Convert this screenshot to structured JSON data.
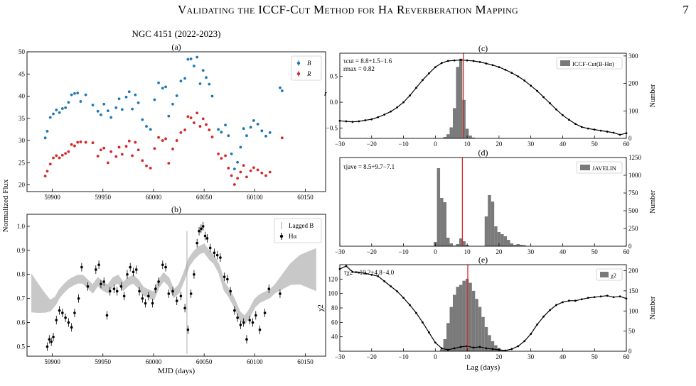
{
  "header": {
    "running_title": "Validating the ICCF-Cut Method for Hα Reverberation Mapping",
    "page_number": "7"
  },
  "figure": {
    "suptitle": "NGC 4151 (2022-2023)",
    "panels": {
      "a": {
        "label": "(a)",
        "ylabel": "Normalized Flux",
        "legend": [
          "B",
          "R"
        ],
        "colors": {
          "B": "#1f77b4",
          "R": "#d62728"
        },
        "xticks": [
          "59900",
          "59950",
          "60000",
          "60050",
          "60100",
          "60150"
        ],
        "yticks": [
          "20",
          "25",
          "30",
          "35",
          "40",
          "45",
          "50"
        ]
      },
      "b": {
        "label": "(b)",
        "xlabel": "MJD (days)",
        "legend": [
          "Lagged B",
          "Hα"
        ],
        "xticks": [
          "59900",
          "59950",
          "60000",
          "60050",
          "60100",
          "60150"
        ],
        "yticks": [
          "0.5",
          "0.6",
          "0.7",
          "0.8",
          "0.9",
          "1.0"
        ]
      },
      "c": {
        "label": "(c)",
        "ylabel": "r",
        "ylabel_right": "Number",
        "annotation_1": "τcut = 8.8+1.5−1.6",
        "annotation_2": "rmax = 0.82",
        "legend": "ICCF-Cut(B-Hα)",
        "xticks": [
          "−30",
          "−20",
          "−10",
          "0",
          "10",
          "20",
          "30",
          "40",
          "50",
          "60"
        ],
        "yticks": [
          "−0.5",
          "0.0",
          "0.5"
        ],
        "yticks_right": [
          "0",
          "100",
          "200",
          "300"
        ],
        "lag_line": 8.8
      },
      "d": {
        "label": "(d)",
        "ylabel_right": "Number",
        "annotation": "τjave = 8.5+9.7−7.1",
        "legend": "JAVELIN",
        "xticks": [
          "−30",
          "−20",
          "−10",
          "0",
          "10",
          "20",
          "30",
          "40",
          "50",
          "60"
        ],
        "yticks_right": [
          "0",
          "250",
          "500",
          "750",
          "1000",
          "1250"
        ],
        "lag_line": 8.5
      },
      "e": {
        "label": "(e)",
        "ylabel": "χ2",
        "ylabel_right": "Number",
        "xlabel": "Lag (days)",
        "annotation": "τχ2 = 10.2+4.8−4.0",
        "legend": "χ2",
        "xticks": [
          "−30",
          "−20",
          "−10",
          "0",
          "10",
          "20",
          "30",
          "40",
          "50",
          "60"
        ],
        "yticks": [
          "40",
          "60",
          "80",
          "100",
          "120"
        ],
        "yticks_right": [
          "0",
          "50",
          "100",
          "150",
          "200"
        ],
        "lag_line": 10.2
      }
    }
  },
  "chart_data": [
    {
      "type": "scatter",
      "panel": "a",
      "title": "(a)",
      "ylabel": "Normalized Flux",
      "xlim": [
        59875,
        60170
      ],
      "ylim": [
        18.5,
        50
      ],
      "series": [
        {
          "name": "B",
          "x": [
            59893,
            59895,
            59898,
            59901,
            59904,
            59907,
            59910,
            59913,
            59916,
            59919,
            59922,
            59925,
            59928,
            59933,
            59940,
            59945,
            59948,
            59951,
            59955,
            59958,
            59963,
            59966,
            59969,
            59973,
            59976,
            59979,
            59982,
            59985,
            59989,
            59993,
            59997,
            60001,
            60005,
            60009,
            60012,
            60015,
            60019,
            60023,
            60027,
            60031,
            60034,
            60037,
            60040,
            60043,
            60046,
            60049,
            60052,
            60055,
            60058,
            60064,
            60067,
            60071,
            60074,
            60077,
            60080,
            60083,
            60086,
            60089,
            60092,
            60096,
            60099,
            60103,
            60107,
            60111,
            60115,
            60125,
            60127
          ],
          "y": [
            30.6,
            32.1,
            35.2,
            36.0,
            36.9,
            36.3,
            37.2,
            37.4,
            38.6,
            40.3,
            40.6,
            40.7,
            38.8,
            40.3,
            38.0,
            36.6,
            35.8,
            38.2,
            36.7,
            35.2,
            37.4,
            39.4,
            37.0,
            39.8,
            41.0,
            37.1,
            40.3,
            38.5,
            34.7,
            33.2,
            32.5,
            39.2,
            43.0,
            41.8,
            42.1,
            35.5,
            38.2,
            40.1,
            43.4,
            44.0,
            48.3,
            48.4,
            46.8,
            48.8,
            42.8,
            45.8,
            44.2,
            42.7,
            40.0,
            32.5,
            31.9,
            33.5,
            31.1,
            27.0,
            23.6,
            25.1,
            28.5,
            32.7,
            31.1,
            33.0,
            34.5,
            33.7,
            32.2,
            31.0,
            31.8,
            41.9,
            41.2
          ]
        },
        {
          "name": "R",
          "x": [
            59893,
            59895,
            59898,
            59901,
            59904,
            59907,
            59910,
            59913,
            59916,
            59919,
            59922,
            59925,
            59928,
            59933,
            59940,
            59945,
            59948,
            59951,
            59955,
            59958,
            59963,
            59966,
            59969,
            59973,
            59976,
            59979,
            59982,
            59985,
            59989,
            59993,
            59997,
            60001,
            60005,
            60009,
            60012,
            60015,
            60019,
            60023,
            60027,
            60031,
            60034,
            60037,
            60040,
            60043,
            60046,
            60049,
            60052,
            60055,
            60058,
            60064,
            60067,
            60071,
            60074,
            60077,
            60080,
            60083,
            60086,
            60089,
            60092,
            60096,
            60099,
            60103,
            60107,
            60111,
            60115,
            60127
          ],
          "y": [
            22.0,
            23.1,
            24.7,
            26.1,
            26.6,
            26.1,
            26.7,
            27.1,
            27.5,
            29.1,
            28.8,
            29.6,
            29.7,
            29.6,
            29.5,
            26.5,
            27.9,
            28.3,
            25.0,
            27.5,
            26.4,
            28.5,
            26.9,
            28.7,
            29.9,
            26.6,
            29.6,
            27.9,
            25.5,
            24.3,
            23.8,
            28.2,
            30.7,
            30.0,
            30.4,
            24.9,
            28.1,
            30.0,
            31.8,
            32.4,
            35.4,
            35.1,
            34.0,
            36.2,
            33.2,
            34.9,
            33.6,
            32.4,
            30.8,
            27.0,
            26.0,
            26.6,
            23.8,
            22.1,
            20.1,
            21.5,
            22.9,
            24.4,
            21.8,
            23.2,
            23.9,
            23.4,
            22.7,
            22.1,
            22.9,
            30.6
          ]
        }
      ]
    },
    {
      "type": "line",
      "panel": "b",
      "title": "(b)",
      "xlabel": "MJD (days)",
      "xlim": [
        59875,
        60170
      ],
      "ylim": [
        0.46,
        1.05
      ],
      "series": [
        {
          "name": "Lagged B",
          "x": [
            59880,
            59886,
            59893,
            59898,
            59903,
            59907,
            59911,
            59916,
            59920,
            59925,
            59930,
            59935,
            59940,
            59945,
            59950,
            59955,
            59960,
            59965,
            59970,
            59975,
            59980,
            59985,
            59990,
            59995,
            60000,
            60005,
            60010,
            60015,
            60020,
            60025,
            60030,
            60035,
            60040,
            60045,
            60050,
            60055,
            60060,
            60065,
            60070,
            60075,
            60080,
            60085,
            60090,
            60095,
            60100,
            60105,
            60110,
            60115,
            60120,
            60125,
            60130,
            60135,
            60140,
            60145,
            60150,
            60155,
            60160
          ],
          "y": [
            0.72,
            0.7,
            0.68,
            0.67,
            0.69,
            0.72,
            0.74,
            0.76,
            0.77,
            0.78,
            0.78,
            0.76,
            0.74,
            0.77,
            0.75,
            0.74,
            0.77,
            0.78,
            0.75,
            0.77,
            0.78,
            0.76,
            0.73,
            0.72,
            0.71,
            0.76,
            0.79,
            0.77,
            0.72,
            0.74,
            0.79,
            0.85,
            0.88,
            0.9,
            0.91,
            0.88,
            0.86,
            0.82,
            0.75,
            0.72,
            0.68,
            0.63,
            0.61,
            0.64,
            0.68,
            0.7,
            0.71,
            0.72,
            0.74,
            0.76,
            0.78,
            0.8,
            0.81,
            0.82,
            0.82,
            0.82,
            0.82
          ]
        },
        {
          "name": "Hα",
          "x": [
            59895,
            59897,
            59899,
            59901,
            59904,
            59907,
            59910,
            59913,
            59916,
            59919,
            59922,
            59926,
            59929,
            59935,
            59943,
            59946,
            59948,
            59951,
            59954,
            59957,
            59961,
            59964,
            59968,
            59971,
            59974,
            59977,
            59980,
            59983,
            59986,
            59989,
            59992,
            59995,
            59999,
            60002,
            60005,
            60009,
            60012,
            60015,
            60019,
            60023,
            60027,
            60031,
            60034,
            60037,
            60040,
            60043,
            60045,
            60047,
            60049,
            60051,
            60053,
            60056,
            60060,
            60063,
            60066,
            60070,
            60073,
            60076,
            60080,
            60083,
            60086,
            60089,
            60092,
            60095,
            60098,
            60101,
            60105,
            60110,
            60114,
            60125
          ],
          "y": [
            0.5,
            0.53,
            0.52,
            0.54,
            0.61,
            0.65,
            0.64,
            0.62,
            0.6,
            0.58,
            0.64,
            0.7,
            0.83,
            0.75,
            0.82,
            0.84,
            0.76,
            0.77,
            0.63,
            0.73,
            0.74,
            0.73,
            0.75,
            0.71,
            0.8,
            0.83,
            0.81,
            0.82,
            0.73,
            0.7,
            0.68,
            0.71,
            0.68,
            0.74,
            0.77,
            0.84,
            0.83,
            0.72,
            0.73,
            0.69,
            0.71,
            0.66,
            0.57,
            0.72,
            0.8,
            0.93,
            0.98,
            0.99,
            1.0,
            0.96,
            0.95,
            0.91,
            0.89,
            0.88,
            0.87,
            0.79,
            0.78,
            0.73,
            0.65,
            0.62,
            0.59,
            0.6,
            0.53,
            0.61,
            0.6,
            0.63,
            0.57,
            0.64,
            0.74,
            0.72
          ]
        }
      ]
    },
    {
      "type": "line",
      "panel": "c",
      "title": "(c)",
      "xlim": [
        -30,
        60
      ],
      "ylim": [
        -0.7,
        0.95
      ],
      "series": [
        {
          "name": "r",
          "x": [
            -30,
            -28,
            -26,
            -24,
            -22,
            -20,
            -18,
            -16,
            -14,
            -12,
            -10,
            -8,
            -6,
            -4,
            -2,
            0,
            2,
            4,
            6,
            8,
            10,
            12,
            14,
            16,
            18,
            20,
            22,
            24,
            26,
            28,
            30,
            32,
            34,
            36,
            38,
            40,
            42,
            44,
            46,
            48,
            50,
            52,
            54,
            56,
            58,
            60
          ],
          "y": [
            -0.36,
            -0.37,
            -0.38,
            -0.37,
            -0.35,
            -0.33,
            -0.29,
            -0.24,
            -0.18,
            -0.1,
            0.0,
            0.13,
            0.28,
            0.43,
            0.56,
            0.68,
            0.76,
            0.8,
            0.81,
            0.82,
            0.81,
            0.8,
            0.78,
            0.75,
            0.72,
            0.68,
            0.63,
            0.57,
            0.5,
            0.42,
            0.32,
            0.22,
            0.1,
            -0.02,
            -0.14,
            -0.25,
            -0.34,
            -0.42,
            -0.48,
            -0.51,
            -0.53,
            -0.55,
            -0.57,
            -0.59,
            -0.63,
            -0.6
          ]
        }
      ],
      "histogram": {
        "name": "ICCF-Cut(B-Hα)",
        "bins": [
          3,
          4,
          5,
          6,
          7,
          8,
          9,
          10,
          11,
          12
        ],
        "counts": [
          5,
          15,
          40,
          110,
          260,
          290,
          140,
          35,
          10,
          3
        ]
      }
    },
    {
      "type": "bar",
      "panel": "d",
      "title": "(d)",
      "xlim": [
        -30,
        60
      ],
      "ylim": [
        0,
        1250
      ],
      "histogram": {
        "name": "JAVELIN",
        "bins": [
          0,
          1,
          2,
          3,
          4,
          5,
          6,
          7,
          8,
          9,
          10,
          16,
          17,
          18,
          19,
          20,
          21,
          22,
          23,
          24,
          25,
          26,
          27,
          28
        ],
        "counts": [
          60,
          1100,
          680,
          620,
          120,
          40,
          10,
          30,
          110,
          70,
          20,
          420,
          720,
          630,
          280,
          200,
          170,
          140,
          90,
          40,
          20,
          30,
          20,
          15
        ]
      }
    },
    {
      "type": "line",
      "panel": "e",
      "title": "(e)",
      "xlabel": "Lag (days)",
      "xlim": [
        -30,
        60
      ],
      "ylim": [
        20,
        140
      ],
      "series": [
        {
          "name": "χ2",
          "x": [
            -30,
            -28,
            -26,
            -24,
            -22,
            -20,
            -18,
            -16,
            -14,
            -12,
            -10,
            -8,
            -6,
            -4,
            -2,
            0,
            2,
            4,
            6,
            8,
            10,
            12,
            14,
            16,
            18,
            20,
            22,
            24,
            26,
            28,
            30,
            32,
            34,
            36,
            38,
            40,
            42,
            44,
            46,
            48,
            50,
            52,
            54,
            56,
            58,
            60
          ],
          "y": [
            134,
            138,
            130,
            129,
            128,
            126,
            124,
            117,
            110,
            103,
            94,
            84,
            73,
            60,
            46,
            32,
            24,
            22,
            24,
            26,
            27,
            25,
            26,
            24,
            23,
            22,
            21,
            23,
            27,
            34,
            44,
            57,
            68,
            77,
            84,
            88,
            90,
            90,
            92,
            94,
            95,
            96,
            97,
            95,
            96,
            93
          ]
        }
      ],
      "histogram": {
        "name": "χ2",
        "bins": [
          2,
          3,
          4,
          5,
          6,
          7,
          8,
          9,
          10,
          11,
          12,
          13,
          14,
          15,
          16,
          17,
          18,
          19,
          20,
          21
        ],
        "counts": [
          5,
          30,
          70,
          110,
          140,
          160,
          165,
          175,
          180,
          170,
          150,
          130,
          110,
          85,
          60,
          40,
          25,
          15,
          8,
          3
        ]
      }
    }
  ]
}
